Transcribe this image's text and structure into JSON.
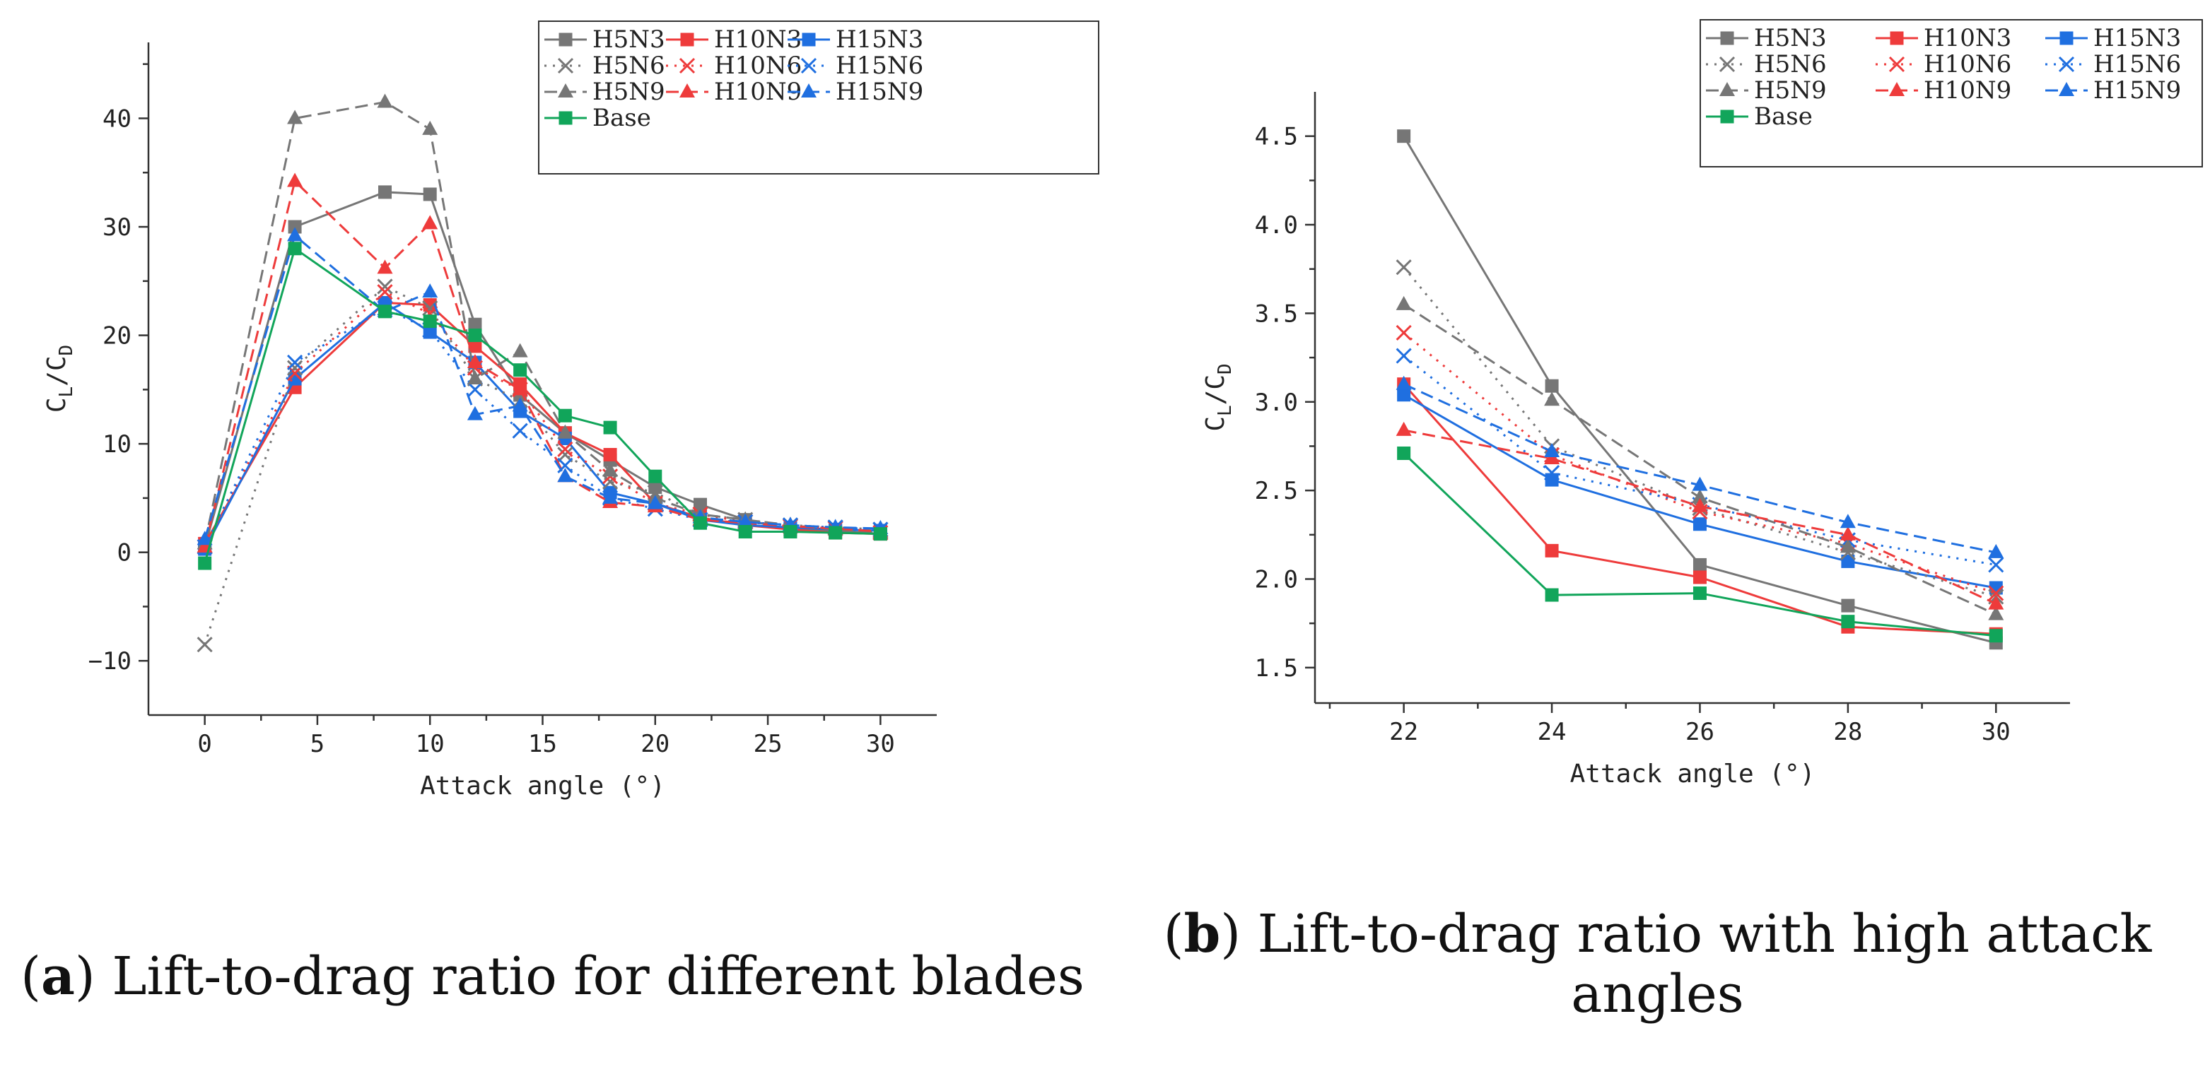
{
  "colors": {
    "gray": "#767676",
    "red": "#ee3b3b",
    "blue": "#1f6fe0",
    "green": "#11a55a"
  },
  "chart_data": [
    {
      "id": "a",
      "type": "line",
      "x": [
        0,
        4,
        8,
        10,
        12,
        14,
        16,
        18,
        20,
        22,
        24,
        26,
        28,
        30
      ],
      "xlabel": "Attack angle (°)",
      "ylabel": {
        "main": "C",
        "sub1": "L",
        "sep": "/C",
        "sub2": "D"
      },
      "xlim": [
        -2.5,
        32.5
      ],
      "ylim": [
        -15,
        47
      ],
      "xticks": [
        0,
        5,
        10,
        15,
        20,
        25,
        30
      ],
      "yticks": [
        -10,
        0,
        10,
        20,
        30,
        40
      ],
      "legend_position": "top-right",
      "series": [
        {
          "name": "H5N3",
          "color": "gray",
          "dash": "solid",
          "marker": "square",
          "values": [
            0.5,
            30,
            33.2,
            33,
            21,
            14.5,
            11,
            8.5,
            6,
            4.4,
            3,
            2.1,
            2,
            1.7
          ]
        },
        {
          "name": "H10N3",
          "color": "red",
          "dash": "solid",
          "marker": "square",
          "values": [
            0.8,
            15.2,
            23,
            22.8,
            19,
            15.5,
            11,
            9,
            4.5,
            3.2,
            2.5,
            2.1,
            1.8,
            1.7
          ]
        },
        {
          "name": "H15N3",
          "color": "blue",
          "dash": "solid",
          "marker": "square",
          "values": [
            0.3,
            16,
            23,
            20.3,
            17.5,
            13,
            10.5,
            5.5,
            4.5,
            3,
            2.5,
            2.3,
            2.1,
            2
          ]
        },
        {
          "name": "H5N6",
          "color": "gray",
          "dash": "dotted",
          "marker": "x",
          "values": [
            -8.5,
            17,
            24.5,
            22.5,
            16,
            14,
            9,
            6.5,
            5.5,
            3.5,
            3,
            2.5,
            2.3,
            2.1
          ]
        },
        {
          "name": "H10N6",
          "color": "red",
          "dash": "dotted",
          "marker": "x",
          "values": [
            0.5,
            16.5,
            24,
            22,
            17,
            15,
            9.5,
            7,
            4.5,
            3.5,
            2.8,
            2.4,
            2.2,
            1.8
          ]
        },
        {
          "name": "H15N6",
          "color": "blue",
          "dash": "dotted",
          "marker": "x",
          "values": [
            0.5,
            17.5,
            22.5,
            20.5,
            15,
            11.2,
            8,
            5,
            4,
            3,
            2.8,
            2.5,
            2.3,
            2.1
          ]
        },
        {
          "name": "H5N9",
          "color": "gray",
          "dash": "dashed",
          "marker": "triangle",
          "values": [
            0.8,
            40,
            41.5,
            39,
            16,
            18.5,
            11,
            7.5,
            5,
            3.5,
            3,
            2.5,
            2.1,
            1.8
          ]
        },
        {
          "name": "H10N9",
          "color": "red",
          "dash": "dashed",
          "marker": "triangle",
          "values": [
            0.5,
            34.2,
            26.2,
            30.3,
            17.5,
            15,
            7,
            4.6,
            4.2,
            3,
            2.7,
            2.4,
            2.2,
            1.9
          ]
        },
        {
          "name": "H15N9",
          "color": "blue",
          "dash": "dashed",
          "marker": "triangle",
          "values": [
            1.2,
            29.2,
            22.2,
            24,
            12.7,
            13.5,
            7,
            5,
            4.5,
            3.2,
            2.8,
            2.5,
            2.3,
            2.2
          ]
        },
        {
          "name": "Base",
          "color": "green",
          "dash": "solid",
          "marker": "square",
          "values": [
            -1,
            28,
            22.2,
            21.3,
            20,
            16.8,
            12.6,
            11.5,
            7,
            2.7,
            1.9,
            1.9,
            1.8,
            1.7
          ]
        }
      ]
    },
    {
      "id": "b",
      "type": "line",
      "x": [
        22,
        24,
        26,
        28,
        30
      ],
      "xlabel": "Attack angle (°)",
      "ylabel": {
        "main": "C",
        "sub1": "L",
        "sep": "/C",
        "sub2": "D"
      },
      "xlim": [
        20.8,
        31
      ],
      "ylim": [
        1.3,
        4.75
      ],
      "xticks": [
        22,
        24,
        26,
        28,
        30
      ],
      "yticks": [
        1.5,
        2.0,
        2.5,
        3.0,
        3.5,
        4.0,
        4.5
      ],
      "legend_position": "top-right",
      "series": [
        {
          "name": "H5N3",
          "color": "gray",
          "dash": "solid",
          "marker": "square",
          "values": [
            4.5,
            3.09,
            2.08,
            1.85,
            1.64
          ]
        },
        {
          "name": "H10N3",
          "color": "red",
          "dash": "solid",
          "marker": "square",
          "values": [
            3.1,
            2.16,
            2.01,
            1.73,
            1.69
          ]
        },
        {
          "name": "H15N3",
          "color": "blue",
          "dash": "solid",
          "marker": "square",
          "values": [
            3.04,
            2.56,
            2.31,
            2.1,
            1.95
          ]
        },
        {
          "name": "H5N6",
          "color": "gray",
          "dash": "dotted",
          "marker": "x",
          "values": [
            3.76,
            2.75,
            2.4,
            2.15,
            1.9
          ]
        },
        {
          "name": "H10N6",
          "color": "red",
          "dash": "dotted",
          "marker": "x",
          "values": [
            3.39,
            2.7,
            2.38,
            2.2,
            1.92
          ]
        },
        {
          "name": "H15N6",
          "color": "blue",
          "dash": "dotted",
          "marker": "x",
          "values": [
            3.26,
            2.6,
            2.42,
            2.22,
            2.08
          ]
        },
        {
          "name": "H5N9",
          "color": "gray",
          "dash": "dashed",
          "marker": "triangle",
          "values": [
            3.55,
            3.01,
            2.46,
            2.18,
            1.8
          ]
        },
        {
          "name": "H10N9",
          "color": "red",
          "dash": "dashed",
          "marker": "triangle",
          "values": [
            2.84,
            2.68,
            2.41,
            2.25,
            1.86
          ]
        },
        {
          "name": "H15N9",
          "color": "blue",
          "dash": "dashed",
          "marker": "triangle",
          "values": [
            3.1,
            2.72,
            2.53,
            2.32,
            2.15
          ]
        },
        {
          "name": "Base",
          "color": "green",
          "dash": "solid",
          "marker": "square",
          "values": [
            2.71,
            1.91,
            1.92,
            1.76,
            1.68
          ]
        }
      ]
    }
  ],
  "captions": {
    "a": {
      "letter": "a",
      "text": ") Lift-to-drag ratio for different blades"
    },
    "b": {
      "letter": "b",
      "text": ") Lift-to-drag ratio with high attack",
      "line2": "angles"
    }
  }
}
